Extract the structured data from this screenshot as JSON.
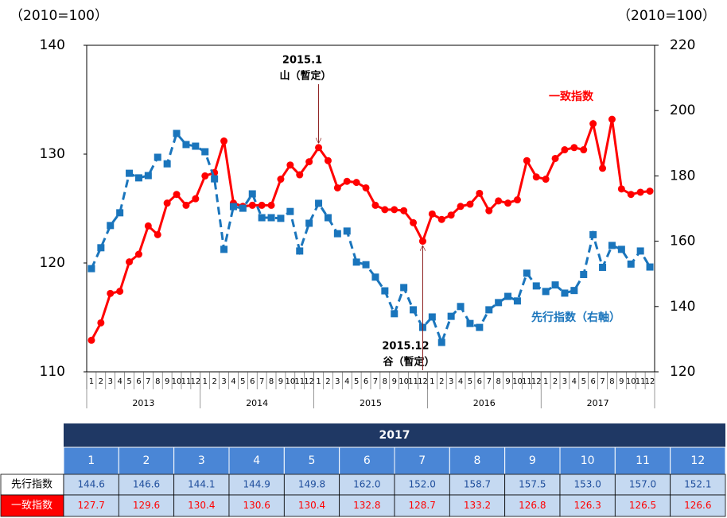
{
  "chart_data": {
    "type": "line",
    "y_unit_label": "（2010=100）",
    "y2_unit_label": "（2010=100）",
    "categories": [
      "1",
      "2",
      "3",
      "4",
      "5",
      "6",
      "7",
      "8",
      "9",
      "10",
      "11",
      "12",
      "1",
      "2",
      "3",
      "4",
      "5",
      "6",
      "7",
      "8",
      "9",
      "10",
      "11",
      "12",
      "1",
      "2",
      "3",
      "4",
      "5",
      "6",
      "7",
      "8",
      "9",
      "10",
      "11",
      "12",
      "1",
      "2",
      "3",
      "4",
      "5",
      "6",
      "7",
      "8",
      "9",
      "10",
      "11",
      "12",
      "1",
      "2",
      "3",
      "4",
      "5",
      "6",
      "7",
      "8",
      "9",
      "10",
      "11",
      "12"
    ],
    "years": [
      "2013",
      "2014",
      "2015",
      "2016",
      "2017"
    ],
    "ylim": [
      110,
      140
    ],
    "yticks": [
      110,
      120,
      130,
      140
    ],
    "y2lim": [
      120,
      220
    ],
    "y2ticks": [
      120,
      140,
      160,
      180,
      200,
      220
    ],
    "series": [
      {
        "name": "一致指数",
        "color": "#ff0000",
        "axis": "y",
        "line_style": "solid",
        "marker": "circle",
        "values": [
          112.9,
          114.5,
          117.2,
          117.4,
          120.1,
          120.8,
          123.4,
          122.6,
          125.5,
          126.3,
          125.3,
          125.9,
          128.0,
          128.3,
          131.2,
          125.5,
          125.2,
          125.3,
          125.3,
          125.3,
          127.7,
          129.0,
          128.1,
          129.3,
          130.6,
          129.4,
          126.9,
          127.5,
          127.4,
          126.9,
          125.3,
          124.9,
          124.9,
          124.8,
          123.7,
          122.0,
          124.5,
          124.0,
          124.4,
          125.2,
          125.4,
          126.4,
          124.8,
          125.7,
          125.5,
          125.8,
          129.4,
          127.9,
          127.7,
          129.6,
          130.4,
          130.6,
          130.4,
          132.8,
          128.7,
          133.2,
          126.8,
          126.3,
          126.5,
          126.6
        ]
      },
      {
        "name": "先行指数（右軸）",
        "color": "#1a75bc",
        "axis": "y2",
        "line_style": "dashed",
        "marker": "square",
        "values": [
          151.6,
          158.0,
          164.8,
          168.7,
          180.8,
          179.4,
          180.1,
          185.7,
          183.7,
          193.0,
          189.6,
          189.1,
          187.4,
          179.1,
          157.5,
          170.6,
          170.1,
          174.5,
          167.2,
          167.2,
          167.0,
          169.1,
          157.0,
          165.5,
          171.6,
          167.2,
          162.3,
          163.1,
          153.6,
          152.8,
          149.0,
          144.8,
          137.8,
          145.8,
          139.0,
          133.6,
          136.8,
          129.0,
          137.0,
          140.0,
          134.8,
          133.6,
          139.0,
          141.2,
          143.1,
          141.7,
          150.2,
          146.3,
          144.6,
          146.6,
          144.1,
          144.9,
          149.8,
          162.0,
          152.0,
          158.7,
          157.5,
          153.0,
          157.0,
          152.1
        ]
      }
    ],
    "annotations": [
      {
        "lines": [
          "2015.1",
          "山（暫定）"
        ]
      },
      {
        "lines": [
          "2015.12",
          "谷（暫定）"
        ]
      }
    ]
  },
  "table": {
    "title": "2017",
    "columns": [
      "1",
      "2",
      "3",
      "4",
      "5",
      "6",
      "7",
      "8",
      "9",
      "10",
      "11",
      "12"
    ],
    "rows": [
      {
        "label": "先行指数",
        "values": [
          "144.6",
          "146.6",
          "144.1",
          "144.9",
          "149.8",
          "162.0",
          "152.0",
          "158.7",
          "157.5",
          "153.0",
          "157.0",
          "152.1"
        ]
      },
      {
        "label": "一致指数",
        "values": [
          "127.7",
          "129.6",
          "130.4",
          "130.6",
          "130.4",
          "132.8",
          "128.7",
          "133.2",
          "126.8",
          "126.3",
          "126.5",
          "126.6"
        ]
      }
    ]
  }
}
